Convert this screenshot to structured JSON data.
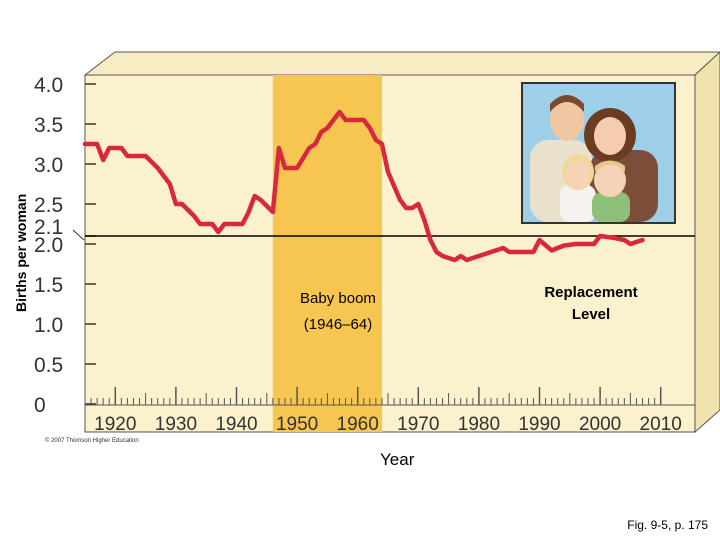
{
  "chart_data": {
    "type": "line",
    "ylabel": "Births per woman",
    "xlabel": "Year",
    "xlim": [
      1915,
      2010
    ],
    "ylim": [
      0,
      4.0
    ],
    "x_ticks": [
      1920,
      1930,
      1940,
      1950,
      1960,
      1970,
      1980,
      1990,
      2000,
      2010
    ],
    "y_ticks": [
      {
        "value": 0,
        "label": "0"
      },
      {
        "value": 0.5,
        "label": "0.5"
      },
      {
        "value": 1.0,
        "label": "1.0"
      },
      {
        "value": 1.5,
        "label": "1.5"
      },
      {
        "value": 2.0,
        "label": "2.0"
      },
      {
        "value": 2.1,
        "label": "2.1"
      },
      {
        "value": 2.5,
        "label": "2.5"
      },
      {
        "value": 3.0,
        "label": "3.0"
      },
      {
        "value": 3.5,
        "label": "3.5"
      },
      {
        "value": 4.0,
        "label": "4.0"
      }
    ],
    "series": [
      {
        "color": "#d8283e",
        "points": [
          [
            1915,
            3.25
          ],
          [
            1917,
            3.25
          ],
          [
            1918,
            3.05
          ],
          [
            1919,
            3.2
          ],
          [
            1921,
            3.2
          ],
          [
            1922,
            3.1
          ],
          [
            1925,
            3.1
          ],
          [
            1927,
            2.95
          ],
          [
            1929,
            2.75
          ],
          [
            1930,
            2.5
          ],
          [
            1931,
            2.5
          ],
          [
            1933,
            2.35
          ],
          [
            1934,
            2.25
          ],
          [
            1936,
            2.25
          ],
          [
            1937,
            2.15
          ],
          [
            1938,
            2.25
          ],
          [
            1941,
            2.25
          ],
          [
            1942,
            2.4
          ],
          [
            1943,
            2.6
          ],
          [
            1944,
            2.55
          ],
          [
            1946,
            2.4
          ],
          [
            1947,
            3.2
          ],
          [
            1948,
            2.95
          ],
          [
            1950,
            2.95
          ],
          [
            1952,
            3.2
          ],
          [
            1953,
            3.25
          ],
          [
            1954,
            3.4
          ],
          [
            1955,
            3.45
          ],
          [
            1957,
            3.65
          ],
          [
            1958,
            3.55
          ],
          [
            1961,
            3.55
          ],
          [
            1962,
            3.45
          ],
          [
            1963,
            3.3
          ],
          [
            1964,
            3.25
          ],
          [
            1965,
            2.9
          ],
          [
            1967,
            2.55
          ],
          [
            1968,
            2.45
          ],
          [
            1969,
            2.45
          ],
          [
            1970,
            2.5
          ],
          [
            1971,
            2.3
          ],
          [
            1972,
            2.05
          ],
          [
            1973,
            1.9
          ],
          [
            1974,
            1.85
          ],
          [
            1976,
            1.8
          ],
          [
            1977,
            1.85
          ],
          [
            1978,
            1.8
          ],
          [
            1980,
            1.85
          ],
          [
            1982,
            1.9
          ],
          [
            1984,
            1.95
          ],
          [
            1985,
            1.9
          ],
          [
            1989,
            1.9
          ],
          [
            1990,
            2.05
          ],
          [
            1992,
            1.92
          ],
          [
            1994,
            1.98
          ],
          [
            1996,
            2.0
          ],
          [
            1999,
            2.0
          ],
          [
            2000,
            2.1
          ],
          [
            2002,
            2.08
          ],
          [
            2004,
            2.05
          ],
          [
            2005,
            2.0
          ],
          [
            2007,
            2.05
          ]
        ]
      }
    ],
    "reference_line": {
      "value": 2.1,
      "label": "Replacement\nLevel",
      "color": "#000000"
    },
    "shaded_region": {
      "from": 1946,
      "to": 1964,
      "color": "#f7c650",
      "label": "Baby boom\n(1946–64)"
    },
    "grid": false,
    "legend": "none"
  },
  "copyright": "© 2007 Thomson Higher Education",
  "figure_caption": "Fig. 9-5, p. 175",
  "colors": {
    "plot_face": "#fbf1cc",
    "plot_side": "#f0e3ad",
    "plot_top": "#f7ecc3",
    "line": "#d8283e",
    "shade": "#f7c650",
    "axis": "#333333"
  }
}
